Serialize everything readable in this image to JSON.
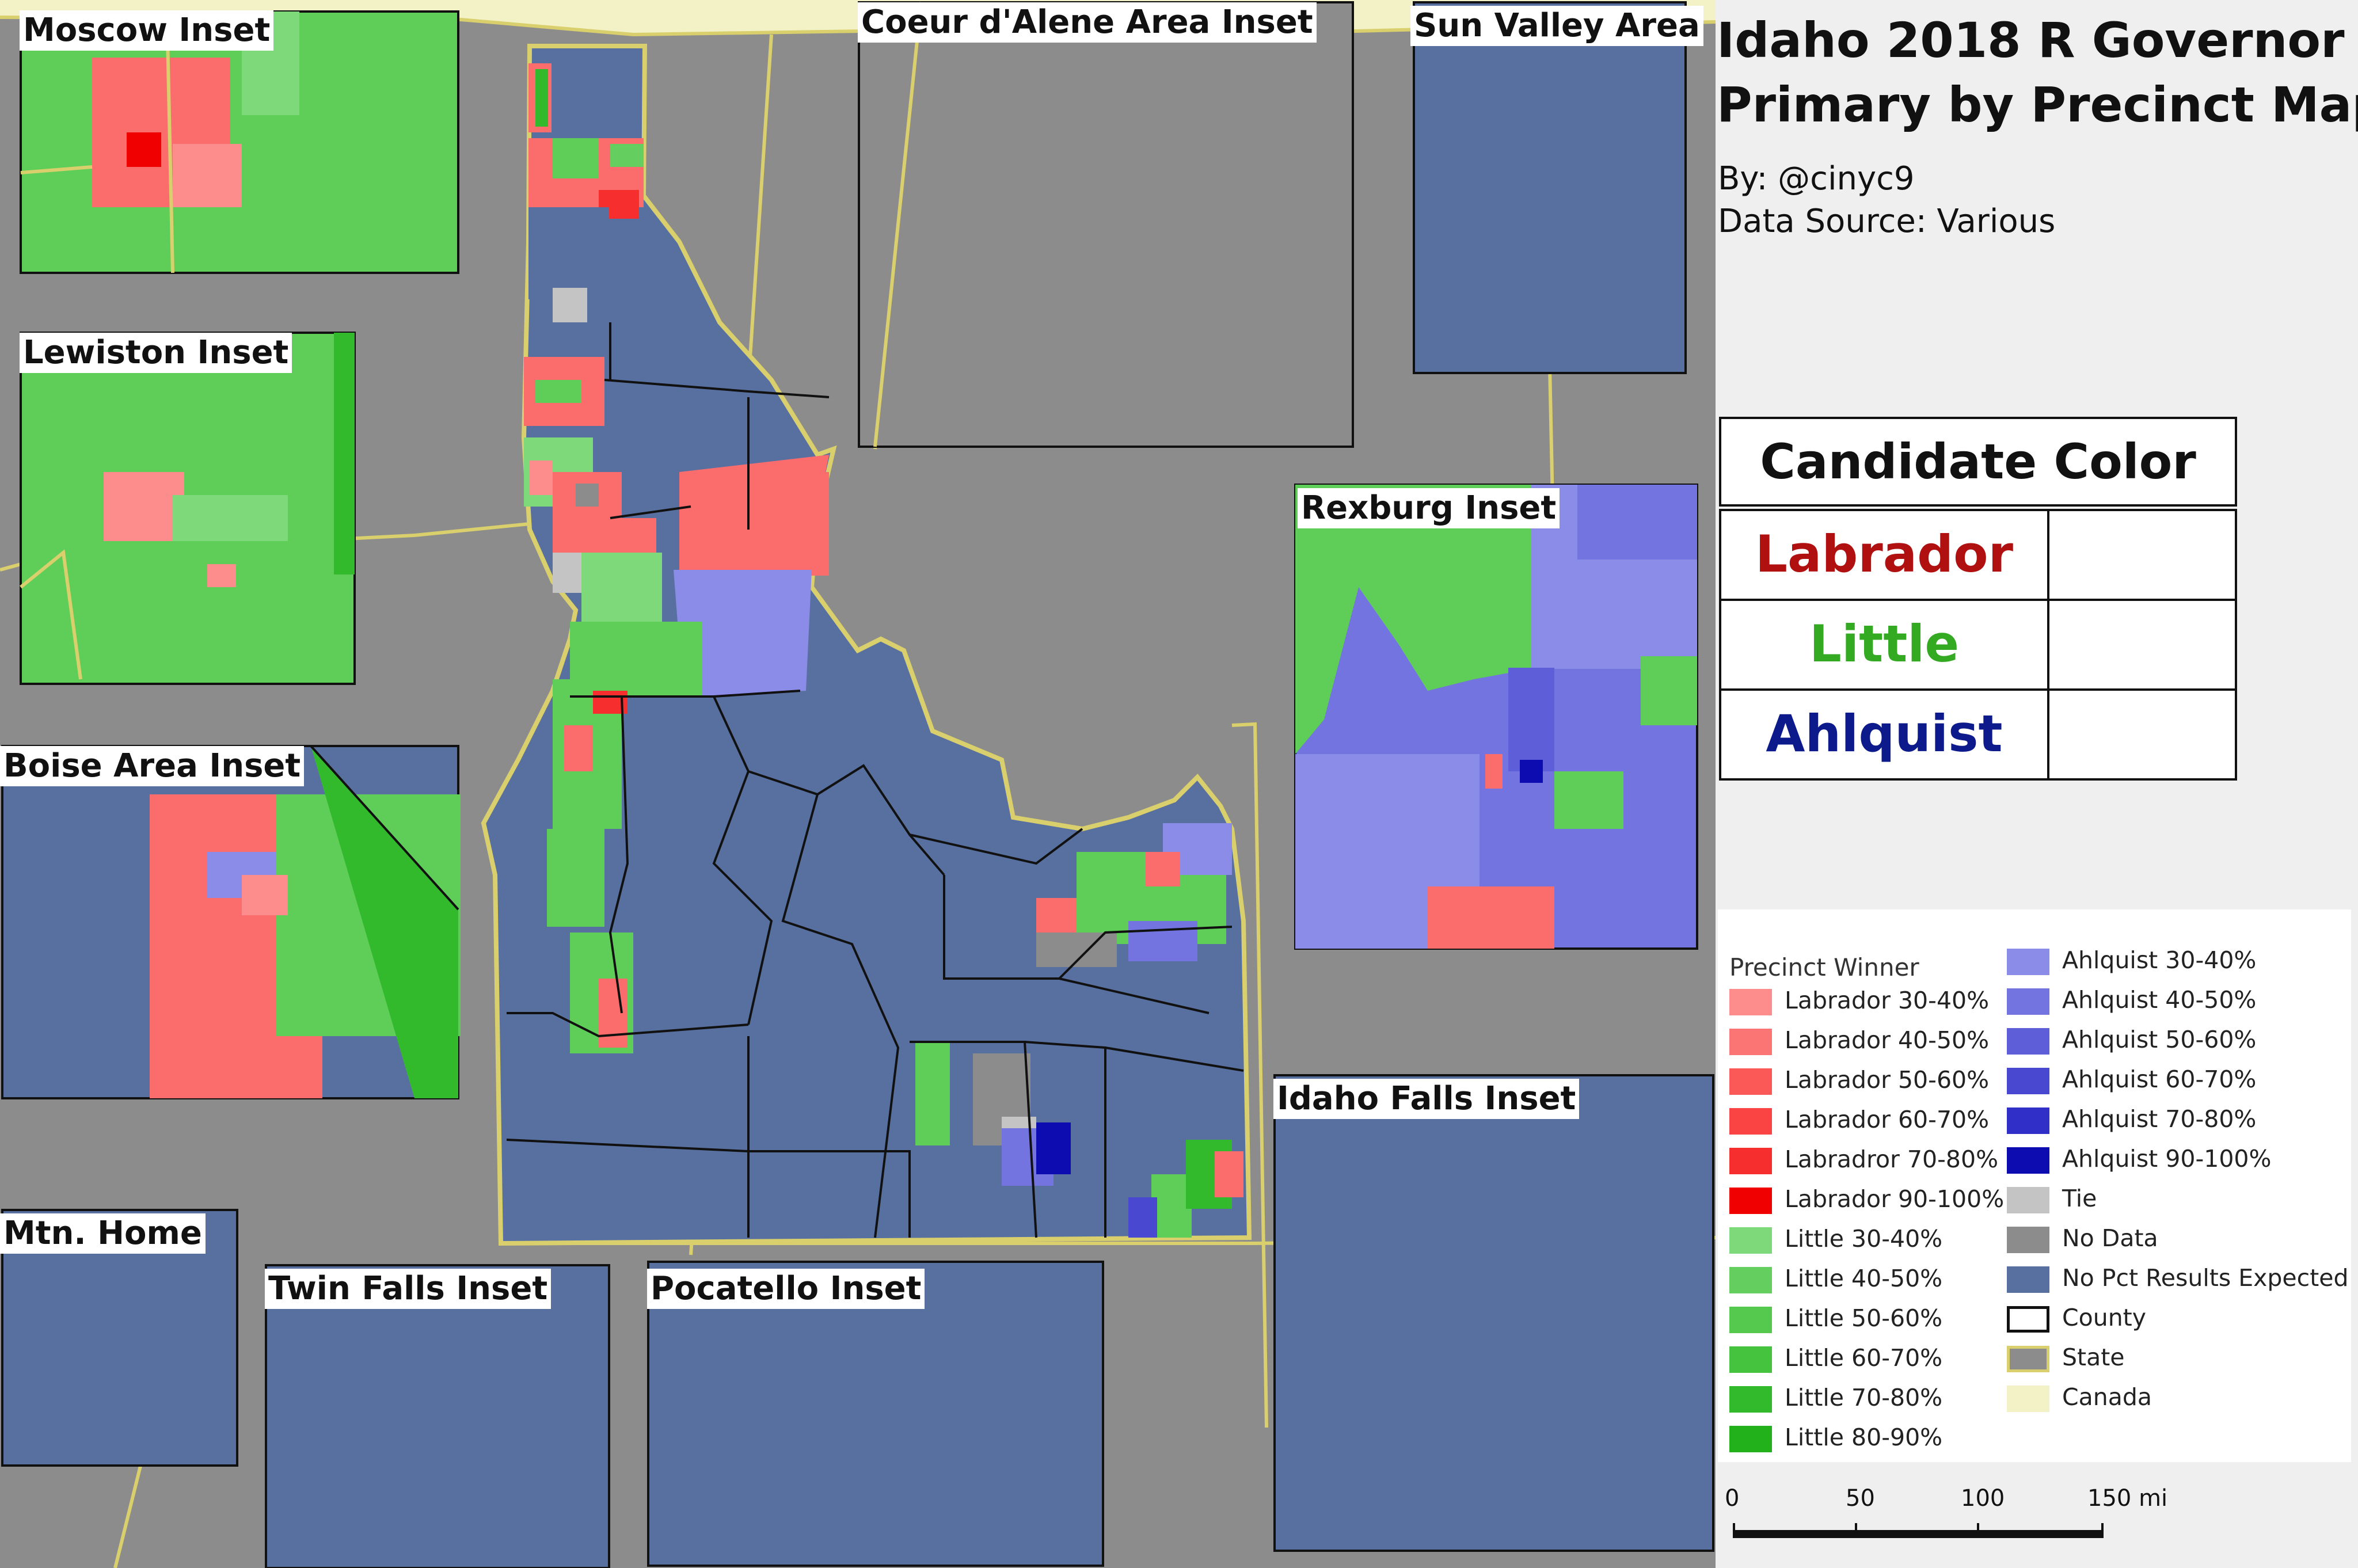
{
  "title": {
    "line1": "Idaho 2018 R Governor",
    "line2": "Primary by Precinct Map"
  },
  "byline": {
    "author": "By: @cinyc9",
    "source": "Data Source: Various"
  },
  "candidate_table": {
    "header": "Candidate Color",
    "candidates": [
      {
        "name": "Labrador",
        "color": "#b01010"
      },
      {
        "name": "Little",
        "color": "#33aa22"
      },
      {
        "name": "Ahlquist",
        "color": "#0d1a8c"
      }
    ]
  },
  "legend": {
    "title": "Precinct Winner",
    "left": [
      {
        "label": "Labrador 30-40%",
        "color": "#fd8c8c"
      },
      {
        "label": "Labrador 40-50%",
        "color": "#fc7575"
      },
      {
        "label": "Labrador 50-60%",
        "color": "#fb5858"
      },
      {
        "label": "Labrador 60-70%",
        "color": "#fa4343"
      },
      {
        "label": "Labradror 70-80%",
        "color": "#f72e2e"
      },
      {
        "label": "Labrador 90-100%",
        "color": "#f00000"
      },
      {
        "label": "Little 30-40%",
        "color": "#7ed97a"
      },
      {
        "label": "Little 40-50%",
        "color": "#64cf5f"
      },
      {
        "label": "Little 50-60%",
        "color": "#54c94e"
      },
      {
        "label": "Little 60-70%",
        "color": "#45c23e"
      },
      {
        "label": "Little 70-80%",
        "color": "#33b92c"
      },
      {
        "label": "Little 80-90%",
        "color": "#22b01b"
      }
    ],
    "right": [
      {
        "label": "Ahlquist 30-40%",
        "color": "#8b8be8"
      },
      {
        "label": "Ahlquist 40-50%",
        "color": "#7474e0"
      },
      {
        "label": "Ahlquist 50-60%",
        "color": "#5e5ed9"
      },
      {
        "label": "Ahlquist 60-70%",
        "color": "#4848d0"
      },
      {
        "label": "Ahlquist 70-80%",
        "color": "#3030c8"
      },
      {
        "label": "Ahlquist 90-100%",
        "color": "#0c0cb0"
      },
      {
        "label": "Tie",
        "color": "#c4c4c4"
      },
      {
        "label": "No Data",
        "color": "#8c8c8c"
      },
      {
        "label": "No Pct Results Expected",
        "color": "#5870a0"
      },
      {
        "label": "County",
        "color": "#ffffff",
        "border": "#111111"
      },
      {
        "label": "State",
        "color": "#8c8c8c",
        "border": "#d9cf6c"
      },
      {
        "label": "Canada",
        "color": "#f3f2c7"
      }
    ]
  },
  "scale": {
    "labels": [
      "0",
      "50",
      "100",
      "150 mi"
    ]
  },
  "insets": {
    "moscow": "Moscow Inset",
    "lewiston": "Lewiston Inset",
    "boise": "Boise Area Inset",
    "mtn_home": "Mtn. Home",
    "twin_falls": "Twin Falls Inset",
    "pocatello": "Pocatello Inset",
    "coeur": "Coeur d'Alene Area Inset",
    "sun_valley": "Sun Valley Area",
    "rexburg": "Rexburg Inset",
    "idaho_falls": "Idaho Falls Inset"
  },
  "colors": {
    "background": "#8c8c8c",
    "canada": "#f3f2c7",
    "state_border": "#d9cf6c",
    "no_results": "#5870a0",
    "no_data": "#8c8c8c",
    "labrador": "#fb6d6d",
    "little": "#5fce58",
    "ahlquist": "#7a7ae4"
  }
}
